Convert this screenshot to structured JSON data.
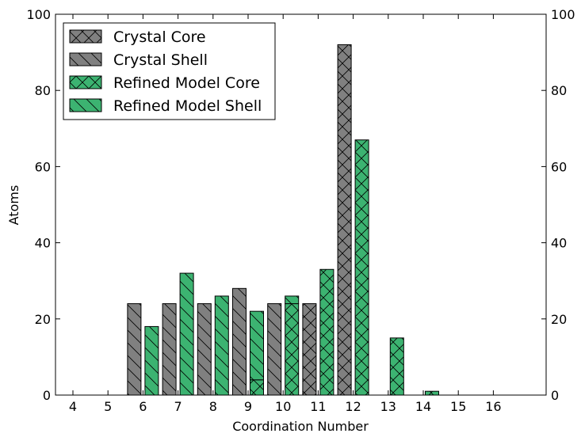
{
  "chart_data": {
    "type": "bar",
    "title": "",
    "xlabel": "Coordination Number",
    "ylabel": "Atoms",
    "ylim": [
      0,
      100
    ],
    "yticks": [
      0,
      20,
      40,
      60,
      80,
      100
    ],
    "x_tick_labels": [
      "4",
      "5",
      "6",
      "7",
      "8",
      "9",
      "10",
      "11",
      "12",
      "13",
      "14",
      "15",
      "16"
    ],
    "right_axis_duplicate": true,
    "grid": false,
    "legend_position": "upper-left",
    "series": [
      {
        "name": "Crystal Core",
        "group": "Crystal",
        "part": "core",
        "color": "#808080",
        "hatch": "x",
        "values": [
          0,
          0,
          0,
          0,
          0,
          0,
          0,
          24,
          92,
          0,
          0,
          0,
          0
        ]
      },
      {
        "name": "Crystal Shell",
        "group": "Crystal",
        "part": "shell",
        "color": "#808080",
        "hatch": "\\",
        "values": [
          0,
          0,
          24,
          24,
          24,
          28,
          24,
          0,
          0,
          0,
          0,
          0,
          0
        ]
      },
      {
        "name": "Refined Model Core",
        "group": "Refined Model",
        "part": "core",
        "color": "#3cb371",
        "hatch": "x",
        "values": [
          0,
          0,
          0,
          0,
          0,
          4,
          24,
          33,
          67,
          15,
          1,
          0,
          0
        ]
      },
      {
        "name": "Refined Model Shell",
        "group": "Refined Model",
        "part": "shell",
        "color": "#3cb371",
        "hatch": "\\",
        "values": [
          0,
          0,
          18,
          32,
          26,
          18,
          2,
          0,
          0,
          0,
          0,
          0,
          0
        ]
      }
    ]
  }
}
